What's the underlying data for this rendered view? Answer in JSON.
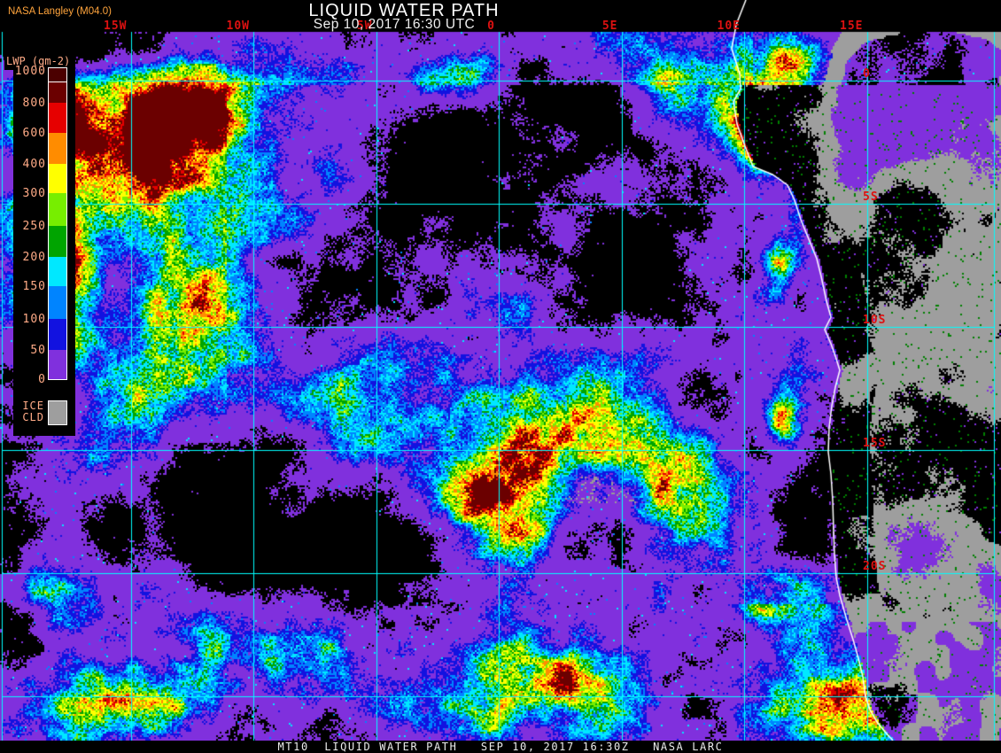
{
  "header": {
    "title": "LIQUID WATER PATH",
    "datetime": "Sep 10, 2017 16:30 UTC",
    "credit": "NASA Langley (M04.0)",
    "credit_color": "#ffa43c"
  },
  "footer": {
    "caption": "MT10  LIQUID WATER PATH   SEP 10, 2017 16:30Z   NASA LARC"
  },
  "legend": {
    "title": "LWP (gm-2)",
    "label_color": "#ffab87",
    "tick_labels": [
      "1000",
      "800",
      "600",
      "400",
      "300",
      "250",
      "200",
      "150",
      "100",
      "50",
      "0"
    ],
    "segment_colors_top_to_bottom": [
      "#6b0000",
      "#e60000",
      "#ff8c00",
      "#ffff00",
      "#77ee00",
      "#00a400",
      "#00e8ff",
      "#0084ff",
      "#1212e0",
      "#8030dd"
    ],
    "overflow_color": "#4b0000",
    "ice": {
      "labels": [
        "ICE",
        "CLD"
      ],
      "color": "#9e9e9e"
    }
  },
  "map": {
    "grid_color": "#00ffff",
    "coast_color": "#ffffff",
    "label_color": "#dd1111",
    "lon_ticks": [
      {
        "label": "15W",
        "deg": -15
      },
      {
        "label": "10W",
        "deg": -10
      },
      {
        "label": "5W",
        "deg": -5
      },
      {
        "label": "0",
        "deg": 0
      },
      {
        "label": "5E",
        "deg": 5
      },
      {
        "label": "10E",
        "deg": 10
      },
      {
        "label": "15E",
        "deg": 15
      }
    ],
    "lat_ticks": [
      {
        "label": "0",
        "deg": 0
      },
      {
        "label": "5S",
        "deg": -5
      },
      {
        "label": "10S",
        "deg": -10
      },
      {
        "label": "15S",
        "deg": -15
      },
      {
        "label": "20S",
        "deg": -20
      }
    ]
  }
}
